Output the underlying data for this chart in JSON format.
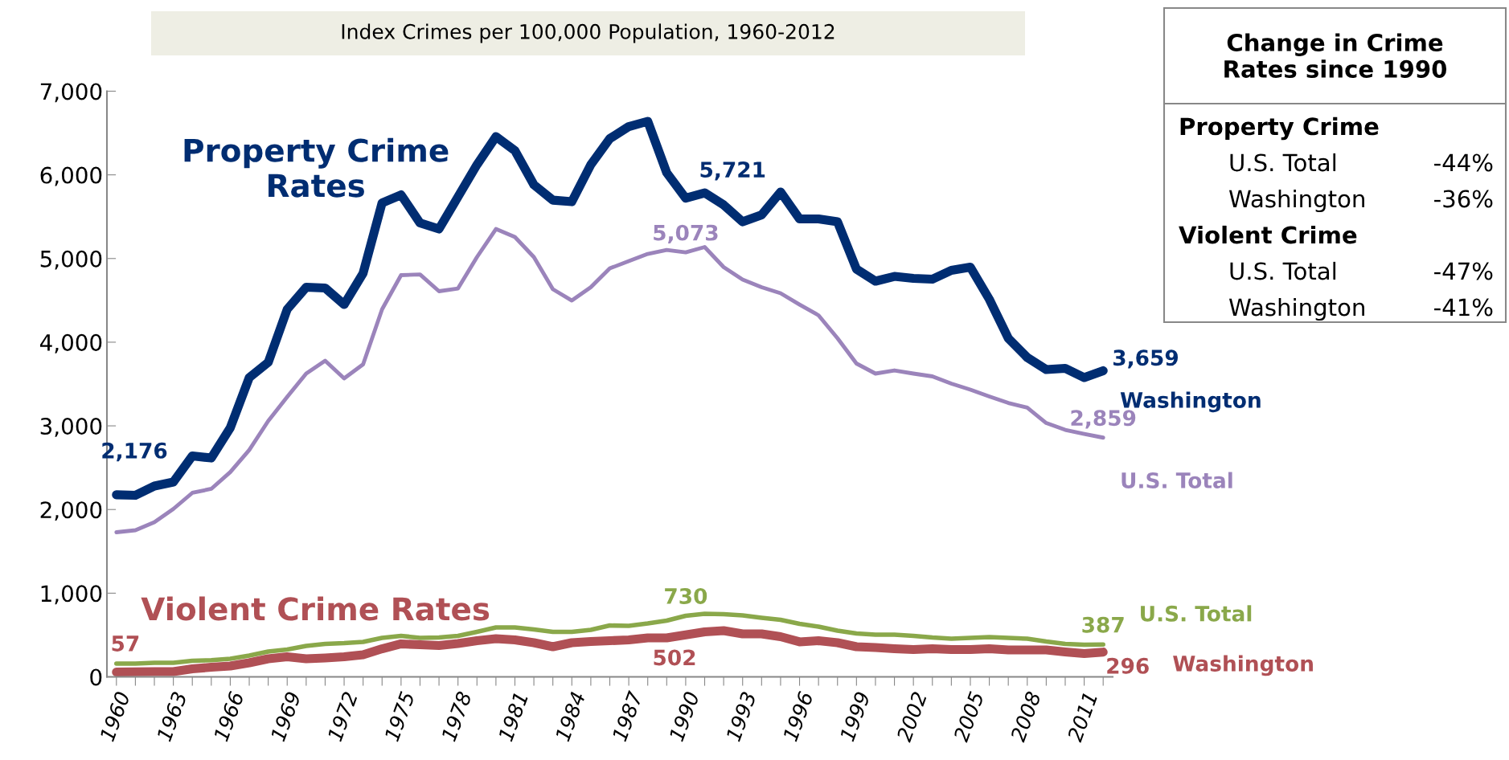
{
  "chart_data": {
    "type": "line",
    "title": "Index Crimes per 100,000 Population, 1960-2012",
    "x": [
      1960,
      1961,
      1962,
      1963,
      1964,
      1965,
      1966,
      1967,
      1968,
      1969,
      1970,
      1971,
      1972,
      1973,
      1974,
      1975,
      1976,
      1977,
      1978,
      1979,
      1980,
      1981,
      1982,
      1983,
      1984,
      1985,
      1986,
      1987,
      1988,
      1989,
      1990,
      1991,
      1992,
      1993,
      1994,
      1995,
      1996,
      1997,
      1998,
      1999,
      2000,
      2001,
      2002,
      2003,
      2004,
      2005,
      2006,
      2007,
      2008,
      2009,
      2010,
      2011,
      2012
    ],
    "series": [
      {
        "name": "Washington",
        "color": "#002d72",
        "values": [
          2176,
          2170,
          2280,
          2328,
          2640,
          2616,
          2976,
          3577,
          3759,
          4393,
          4657,
          4647,
          4450,
          4825,
          5665,
          5761,
          5425,
          5353,
          5737,
          6121,
          6457,
          6289,
          5881,
          5698,
          5679,
          6121,
          6433,
          6577,
          6640,
          6025,
          5721,
          5785,
          5641,
          5439,
          5521,
          5795,
          5473,
          5473,
          5439,
          4873,
          4729,
          4786,
          4762,
          4753,
          4858,
          4897,
          4513,
          4047,
          3817,
          3673,
          3687,
          3577,
          3659
        ],
        "value_labels": [
          "2,176",
          null,
          null,
          null,
          null,
          null,
          null,
          null,
          null,
          null,
          null,
          null,
          null,
          null,
          null,
          null,
          null,
          null,
          null,
          null,
          null,
          null,
          null,
          null,
          null,
          null,
          null,
          null,
          null,
          null,
          "5,721",
          null,
          null,
          null,
          null,
          null,
          null,
          null,
          null,
          null,
          null,
          null,
          null,
          null,
          null,
          null,
          null,
          null,
          null,
          null,
          null,
          null,
          "3,659"
        ]
      },
      {
        "name": "U.S. Total",
        "color": "#9b84bb",
        "values": [
          1728,
          1752,
          1848,
          2007,
          2199,
          2247,
          2448,
          2712,
          3058,
          3346,
          3625,
          3778,
          3567,
          3735,
          4393,
          4801,
          4810,
          4609,
          4642,
          5017,
          5353,
          5257,
          5017,
          4633,
          4498,
          4657,
          4882,
          4969,
          5055,
          5103,
          5073,
          5137,
          4897,
          4748,
          4657,
          4585,
          4450,
          4321,
          4047,
          3745,
          3625,
          3663,
          3625,
          3591,
          3505,
          3433,
          3351,
          3274,
          3217,
          3034,
          2952,
          2904,
          2859
        ],
        "value_labels": [
          null,
          null,
          null,
          null,
          null,
          null,
          null,
          null,
          null,
          null,
          null,
          null,
          null,
          null,
          null,
          null,
          null,
          null,
          null,
          null,
          null,
          null,
          null,
          null,
          null,
          null,
          null,
          null,
          null,
          null,
          "5,073",
          null,
          null,
          null,
          null,
          null,
          null,
          null,
          null,
          null,
          null,
          null,
          null,
          null,
          null,
          null,
          null,
          null,
          null,
          null,
          null,
          null,
          "2,859"
        ]
      },
      {
        "name": "U.S. Total",
        "color": "#8aa84a",
        "values": [
          158,
          158,
          168,
          168,
          192,
          200,
          216,
          254,
          302,
          326,
          370,
          394,
          403,
          418,
          466,
          490,
          466,
          470,
          490,
          538,
          590,
          590,
          566,
          538,
          538,
          562,
          614,
          610,
          638,
          672,
          730,
          754,
          749,
          735,
          706,
          682,
          634,
          600,
          552,
          518,
          504,
          504,
          490,
          470,
          456,
          466,
          475,
          466,
          456,
          422,
          394,
          384,
          387
        ],
        "value_labels": [
          null,
          null,
          null,
          null,
          null,
          null,
          null,
          null,
          null,
          null,
          null,
          null,
          null,
          null,
          null,
          null,
          null,
          null,
          null,
          null,
          null,
          null,
          null,
          null,
          null,
          null,
          null,
          null,
          null,
          null,
          "730",
          null,
          null,
          null,
          null,
          null,
          null,
          null,
          null,
          null,
          null,
          null,
          null,
          null,
          null,
          null,
          null,
          null,
          null,
          null,
          null,
          null,
          "387"
        ]
      },
      {
        "name": "Washington",
        "color": "#b05055",
        "values": [
          57,
          60,
          62,
          62,
          96,
          115,
          130,
          168,
          216,
          240,
          216,
          226,
          240,
          264,
          336,
          394,
          384,
          374,
          398,
          432,
          456,
          442,
          408,
          360,
          408,
          422,
          432,
          442,
          466,
          466,
          502,
          538,
          552,
          514,
          514,
          480,
          418,
          432,
          408,
          360,
          350,
          336,
          326,
          336,
          326,
          326,
          336,
          322,
          322,
          322,
          298,
          278,
          296
        ],
        "value_labels": [
          "57",
          null,
          null,
          null,
          null,
          null,
          null,
          null,
          null,
          null,
          null,
          null,
          null,
          null,
          null,
          null,
          null,
          null,
          null,
          null,
          null,
          null,
          null,
          null,
          null,
          null,
          null,
          null,
          null,
          null,
          "502",
          null,
          null,
          null,
          null,
          null,
          null,
          null,
          null,
          null,
          null,
          null,
          null,
          null,
          null,
          null,
          null,
          null,
          null,
          null,
          null,
          null,
          "296"
        ]
      }
    ],
    "xlim": [
      1959.5,
      2012.5
    ],
    "xticks": [
      1960,
      {
        "value": 1961,
        "label": null
      },
      {
        "value": 1962,
        "label": null
      },
      1963,
      {
        "value": 1964,
        "label": null
      },
      {
        "value": 1965,
        "label": null
      },
      1966,
      {
        "value": 1967,
        "label": null
      },
      {
        "value": 1968,
        "label": null
      },
      1969,
      {
        "value": 1970,
        "label": null
      },
      {
        "value": 1971,
        "label": null
      },
      1972,
      {
        "value": 1973,
        "label": null
      },
      {
        "value": 1974,
        "label": null
      },
      1975,
      {
        "value": 1976,
        "label": null
      },
      {
        "value": 1977,
        "label": null
      },
      1978,
      {
        "value": 1979,
        "label": null
      },
      {
        "value": 1980,
        "label": null
      },
      1981,
      {
        "value": 1982,
        "label": null
      },
      {
        "value": 1983,
        "label": null
      },
      1984,
      {
        "value": 1985,
        "label": null
      },
      {
        "value": 1986,
        "label": null
      },
      1987,
      {
        "value": 1988,
        "label": null
      },
      {
        "value": 1989,
        "label": null
      },
      1990,
      {
        "value": 1991,
        "label": null
      },
      {
        "value": 1992,
        "label": null
      },
      1993,
      {
        "value": 1994,
        "label": null
      },
      {
        "value": 1995,
        "label": null
      },
      1996,
      {
        "value": 1997,
        "label": null
      },
      {
        "value": 1998,
        "label": null
      },
      1999,
      {
        "value": 2000,
        "label": null
      },
      {
        "value": 2001,
        "label": null
      },
      2002,
      {
        "value": 2003,
        "label": null
      },
      {
        "value": 2004,
        "label": null
      },
      2005,
      {
        "value": 2006,
        "label": null
      },
      {
        "value": 2007,
        "label": null
      },
      2008,
      {
        "value": 2009,
        "label": null
      },
      {
        "value": 2010,
        "label": null
      },
      2011,
      {
        "value": 2012,
        "label": null
      }
    ],
    "ylim": [
      0,
      7000
    ],
    "yticks": [
      0,
      {
        "value": 1000,
        "label": "1,000"
      },
      {
        "value": 2000,
        "label": "2,000"
      },
      {
        "value": 3000,
        "label": "3,000"
      },
      {
        "value": 4000,
        "label": "4,000"
      },
      {
        "value": 5000,
        "label": "5,000"
      },
      {
        "value": 6000,
        "label": "6,000"
      },
      {
        "value": 7000,
        "label": "7,000"
      }
    ],
    "grid": false,
    "legend": false,
    "marker": "none",
    "line_style": "solid",
    "annotations": [
      "Property Crime Rates",
      "Violent Crime Rates",
      "Change in Crime Rates since 1990",
      "Property Crime",
      "U.S. Total",
      "-44%",
      "Washington",
      "-36%",
      "Violent Crime",
      "U.S. Total",
      "-47%",
      "Washington",
      "-41%"
    ]
  }
}
